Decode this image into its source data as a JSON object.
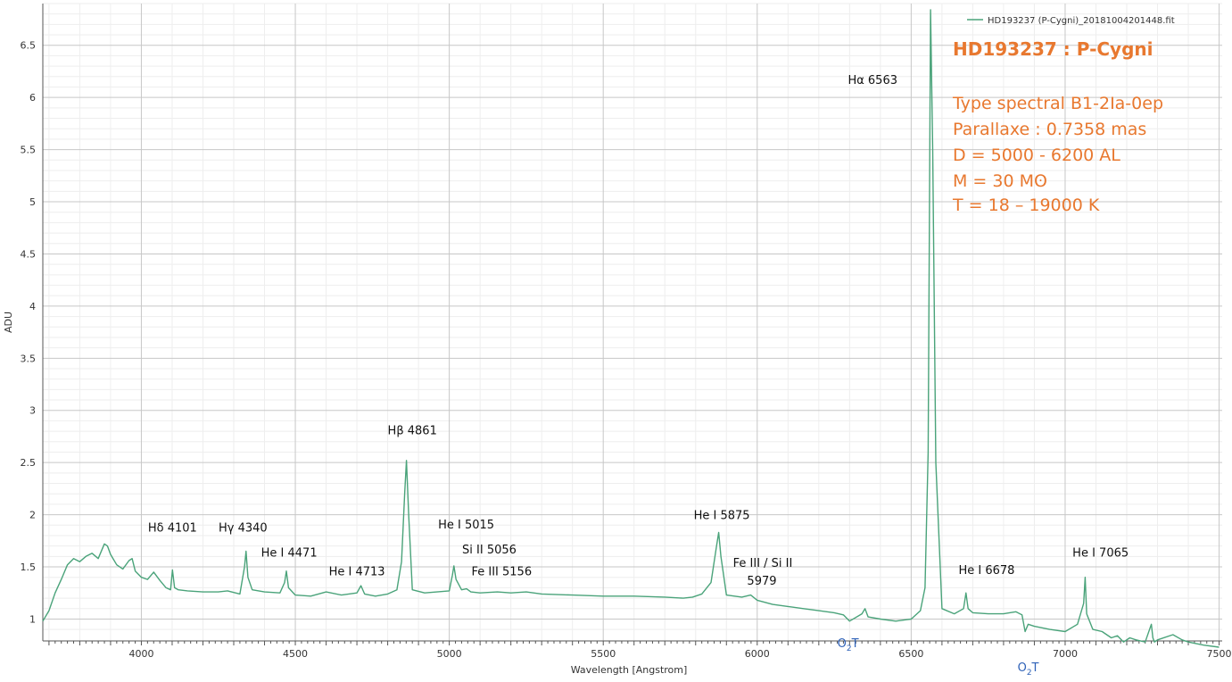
{
  "chart_data": {
    "type": "line",
    "xlabel": "Wavelength [Angstrom]",
    "ylabel": "ADU",
    "xlim": [
      3680,
      7510
    ],
    "ylim": [
      0.79,
      6.9
    ],
    "x_ticks": [
      4000,
      4500,
      5000,
      5500,
      6000,
      6500,
      7000,
      7500
    ],
    "y_ticks": [
      1,
      1.5,
      2,
      2.5,
      3,
      3.5,
      4,
      4.5,
      5,
      5.5,
      6,
      6.5
    ],
    "grid": true,
    "legend": {
      "placement": "top-right"
    },
    "series": [
      {
        "name": "HD193237 (P-Cygni)_20181004201448.fit",
        "color": "#4aa37a",
        "x": [
          3680,
          3700,
          3720,
          3740,
          3760,
          3780,
          3800,
          3820,
          3840,
          3860,
          3880,
          3890,
          3900,
          3920,
          3940,
          3960,
          3970,
          3980,
          4000,
          4020,
          4040,
          4060,
          4080,
          4095,
          4101,
          4108,
          4120,
          4150,
          4200,
          4250,
          4280,
          4320,
          4335,
          4340,
          4346,
          4360,
          4400,
          4450,
          4465,
          4471,
          4478,
          4500,
          4550,
          4600,
          4650,
          4700,
          4713,
          4725,
          4760,
          4800,
          4830,
          4845,
          4855,
          4861,
          4868,
          4880,
          4920,
          4960,
          5000,
          5010,
          5015,
          5022,
          5040,
          5056,
          5070,
          5100,
          5156,
          5200,
          5250,
          5300,
          5400,
          5500,
          5600,
          5700,
          5760,
          5790,
          5820,
          5850,
          5868,
          5875,
          5882,
          5900,
          5950,
          5979,
          6000,
          6050,
          6100,
          6150,
          6200,
          6250,
          6280,
          6300,
          6340,
          6350,
          6360,
          6400,
          6450,
          6500,
          6530,
          6545,
          6555,
          6563,
          6570,
          6580,
          6600,
          6640,
          6670,
          6678,
          6685,
          6700,
          6750,
          6800,
          6840,
          6860,
          6870,
          6880,
          6900,
          6950,
          7000,
          7040,
          7060,
          7065,
          7070,
          7090,
          7120,
          7150,
          7170,
          7190,
          7210,
          7230,
          7260,
          7280,
          7285,
          7290,
          7300,
          7350,
          7380,
          7400,
          7450,
          7500
        ],
        "y": [
          0.98,
          1.08,
          1.25,
          1.38,
          1.52,
          1.58,
          1.55,
          1.6,
          1.63,
          1.58,
          1.72,
          1.7,
          1.62,
          1.52,
          1.48,
          1.56,
          1.58,
          1.46,
          1.4,
          1.38,
          1.45,
          1.37,
          1.3,
          1.28,
          1.47,
          1.3,
          1.28,
          1.27,
          1.26,
          1.26,
          1.27,
          1.24,
          1.5,
          1.65,
          1.4,
          1.28,
          1.26,
          1.25,
          1.35,
          1.46,
          1.3,
          1.23,
          1.22,
          1.26,
          1.23,
          1.25,
          1.32,
          1.24,
          1.22,
          1.24,
          1.28,
          1.55,
          2.2,
          2.52,
          2.0,
          1.28,
          1.25,
          1.26,
          1.27,
          1.42,
          1.51,
          1.38,
          1.28,
          1.29,
          1.26,
          1.25,
          1.26,
          1.25,
          1.26,
          1.24,
          1.23,
          1.22,
          1.22,
          1.21,
          1.2,
          1.21,
          1.24,
          1.35,
          1.7,
          1.83,
          1.6,
          1.23,
          1.21,
          1.23,
          1.18,
          1.14,
          1.12,
          1.1,
          1.08,
          1.06,
          1.04,
          0.98,
          1.05,
          1.1,
          1.02,
          1.0,
          0.98,
          1.0,
          1.08,
          1.3,
          2.6,
          6.84,
          5.5,
          2.5,
          1.1,
          1.05,
          1.1,
          1.25,
          1.1,
          1.06,
          1.05,
          1.05,
          1.07,
          1.04,
          0.88,
          0.95,
          0.93,
          0.9,
          0.88,
          0.95,
          1.15,
          1.4,
          1.05,
          0.9,
          0.88,
          0.82,
          0.84,
          0.78,
          0.82,
          0.8,
          0.78,
          0.95,
          0.82,
          0.78,
          0.8,
          0.85,
          0.8,
          0.78,
          0.75,
          0.73
        ]
      }
    ],
    "annotations": [
      {
        "text": "Hδ 4101",
        "x": 4101,
        "y": 1.84
      },
      {
        "text": "Hγ 4340",
        "x": 4330,
        "y": 1.84
      },
      {
        "text": "He I 4471",
        "x": 4480,
        "y": 1.6
      },
      {
        "text": "He I 4713",
        "x": 4700,
        "y": 1.42
      },
      {
        "text": "Hβ 4861",
        "x": 4880,
        "y": 2.77
      },
      {
        "text": "He I 5015",
        "x": 5055,
        "y": 1.87
      },
      {
        "text": "Si II 5056",
        "x": 5130,
        "y": 1.63
      },
      {
        "text": "Fe III 5156",
        "x": 5170,
        "y": 1.42
      },
      {
        "text": "He I 5875",
        "x": 5885,
        "y": 1.96
      },
      {
        "text": "Fe III / Si II",
        "x": 6018,
        "y": 1.5
      },
      {
        "text": "5979",
        "x": 6015,
        "y": 1.33
      },
      {
        "text": "Hα 6563",
        "x": 6375,
        "y": 6.13
      },
      {
        "text": "He I 6678",
        "x": 6745,
        "y": 1.43
      },
      {
        "text": "He I 7065",
        "x": 7115,
        "y": 1.6
      }
    ],
    "telluric_annotations": [
      {
        "sub": "2",
        "prefix": "O",
        "suffix": "T",
        "x": 6295,
        "y": 0.73
      },
      {
        "sub": "2",
        "prefix": "O",
        "suffix": "T",
        "x": 6880,
        "y": 0.5
      }
    ]
  },
  "info_box": {
    "title": "HD193237 : P-Cygni",
    "lines": [
      "Type spectral B1-2Ia-0ep",
      "Parallaxe : 0.7358 mas",
      "D = 5000 - 6200 AL",
      "M = 30 Mʘ",
      "T = 18 – 19000 K"
    ],
    "color": "#e8782f"
  },
  "colors": {
    "series": "#4aa37a",
    "grid_major": "#c7c7c7",
    "grid_minor": "#eeeeee",
    "axis": "#555555",
    "telluric_label": "#2f62b8"
  }
}
